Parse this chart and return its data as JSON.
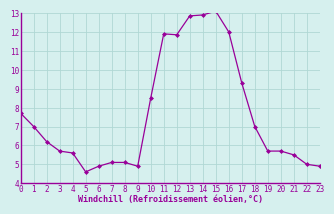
{
  "x": [
    0,
    1,
    2,
    3,
    4,
    5,
    6,
    7,
    8,
    9,
    10,
    11,
    12,
    13,
    14,
    15,
    16,
    17,
    18,
    19,
    20,
    21,
    22,
    23
  ],
  "y": [
    7.7,
    7.0,
    6.2,
    5.7,
    5.6,
    4.6,
    4.9,
    5.1,
    5.1,
    4.9,
    8.5,
    11.9,
    11.85,
    12.85,
    12.9,
    13.1,
    12.0,
    9.3,
    7.0,
    5.7,
    5.7,
    5.5,
    5.0,
    4.9
  ],
  "line_color": "#990099",
  "marker": "D",
  "marker_size": 2,
  "bg_color": "#d6f0ee",
  "grid_color": "#b0d8d4",
  "xlabel": "Windchill (Refroidissement éolien,°C)",
  "xlabel_color": "#990099",
  "tick_color": "#990099",
  "axis_color": "#990099",
  "ylim": [
    4,
    13
  ],
  "xlim": [
    0,
    23
  ],
  "yticks": [
    4,
    5,
    6,
    7,
    8,
    9,
    10,
    11,
    12,
    13
  ],
  "xticks": [
    0,
    1,
    2,
    3,
    4,
    5,
    6,
    7,
    8,
    9,
    10,
    11,
    12,
    13,
    14,
    15,
    16,
    17,
    18,
    19,
    20,
    21,
    22,
    23
  ],
  "tick_fontsize": 5.5,
  "xlabel_fontsize": 6.0
}
